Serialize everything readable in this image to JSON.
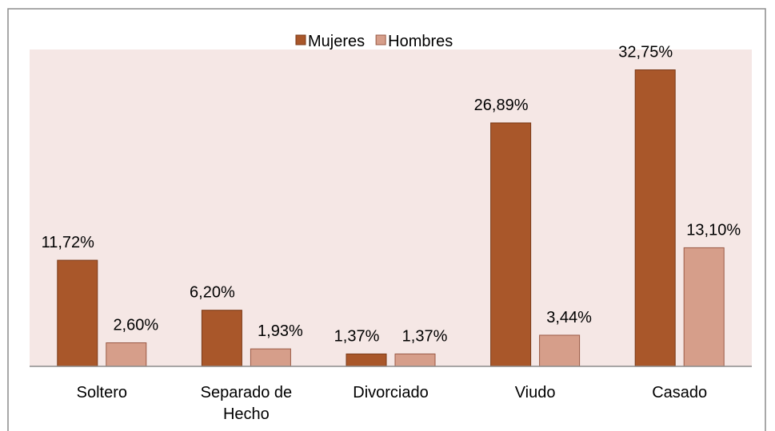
{
  "chart_data": {
    "type": "bar",
    "categories": [
      "Soltero",
      "Separado de Hecho",
      "Divorciado",
      "Viudo",
      "Casado"
    ],
    "series": [
      {
        "name": "Mujeres",
        "color": "#a9572a",
        "values": [
          11.72,
          6.2,
          1.37,
          26.89,
          32.75
        ],
        "value_labels": [
          "11,72%",
          "6,20%",
          "1,37%",
          "26,89%",
          "32,75%"
        ]
      },
      {
        "name": "Hombres",
        "color": "#d69e8a",
        "values": [
          2.6,
          1.93,
          1.37,
          3.44,
          13.1
        ],
        "value_labels": [
          "2,60%",
          "1,93%",
          "1,37%",
          "3,44%",
          "13,10%"
        ]
      }
    ],
    "ylim": [
      0,
      35
    ],
    "legend": "top"
  }
}
